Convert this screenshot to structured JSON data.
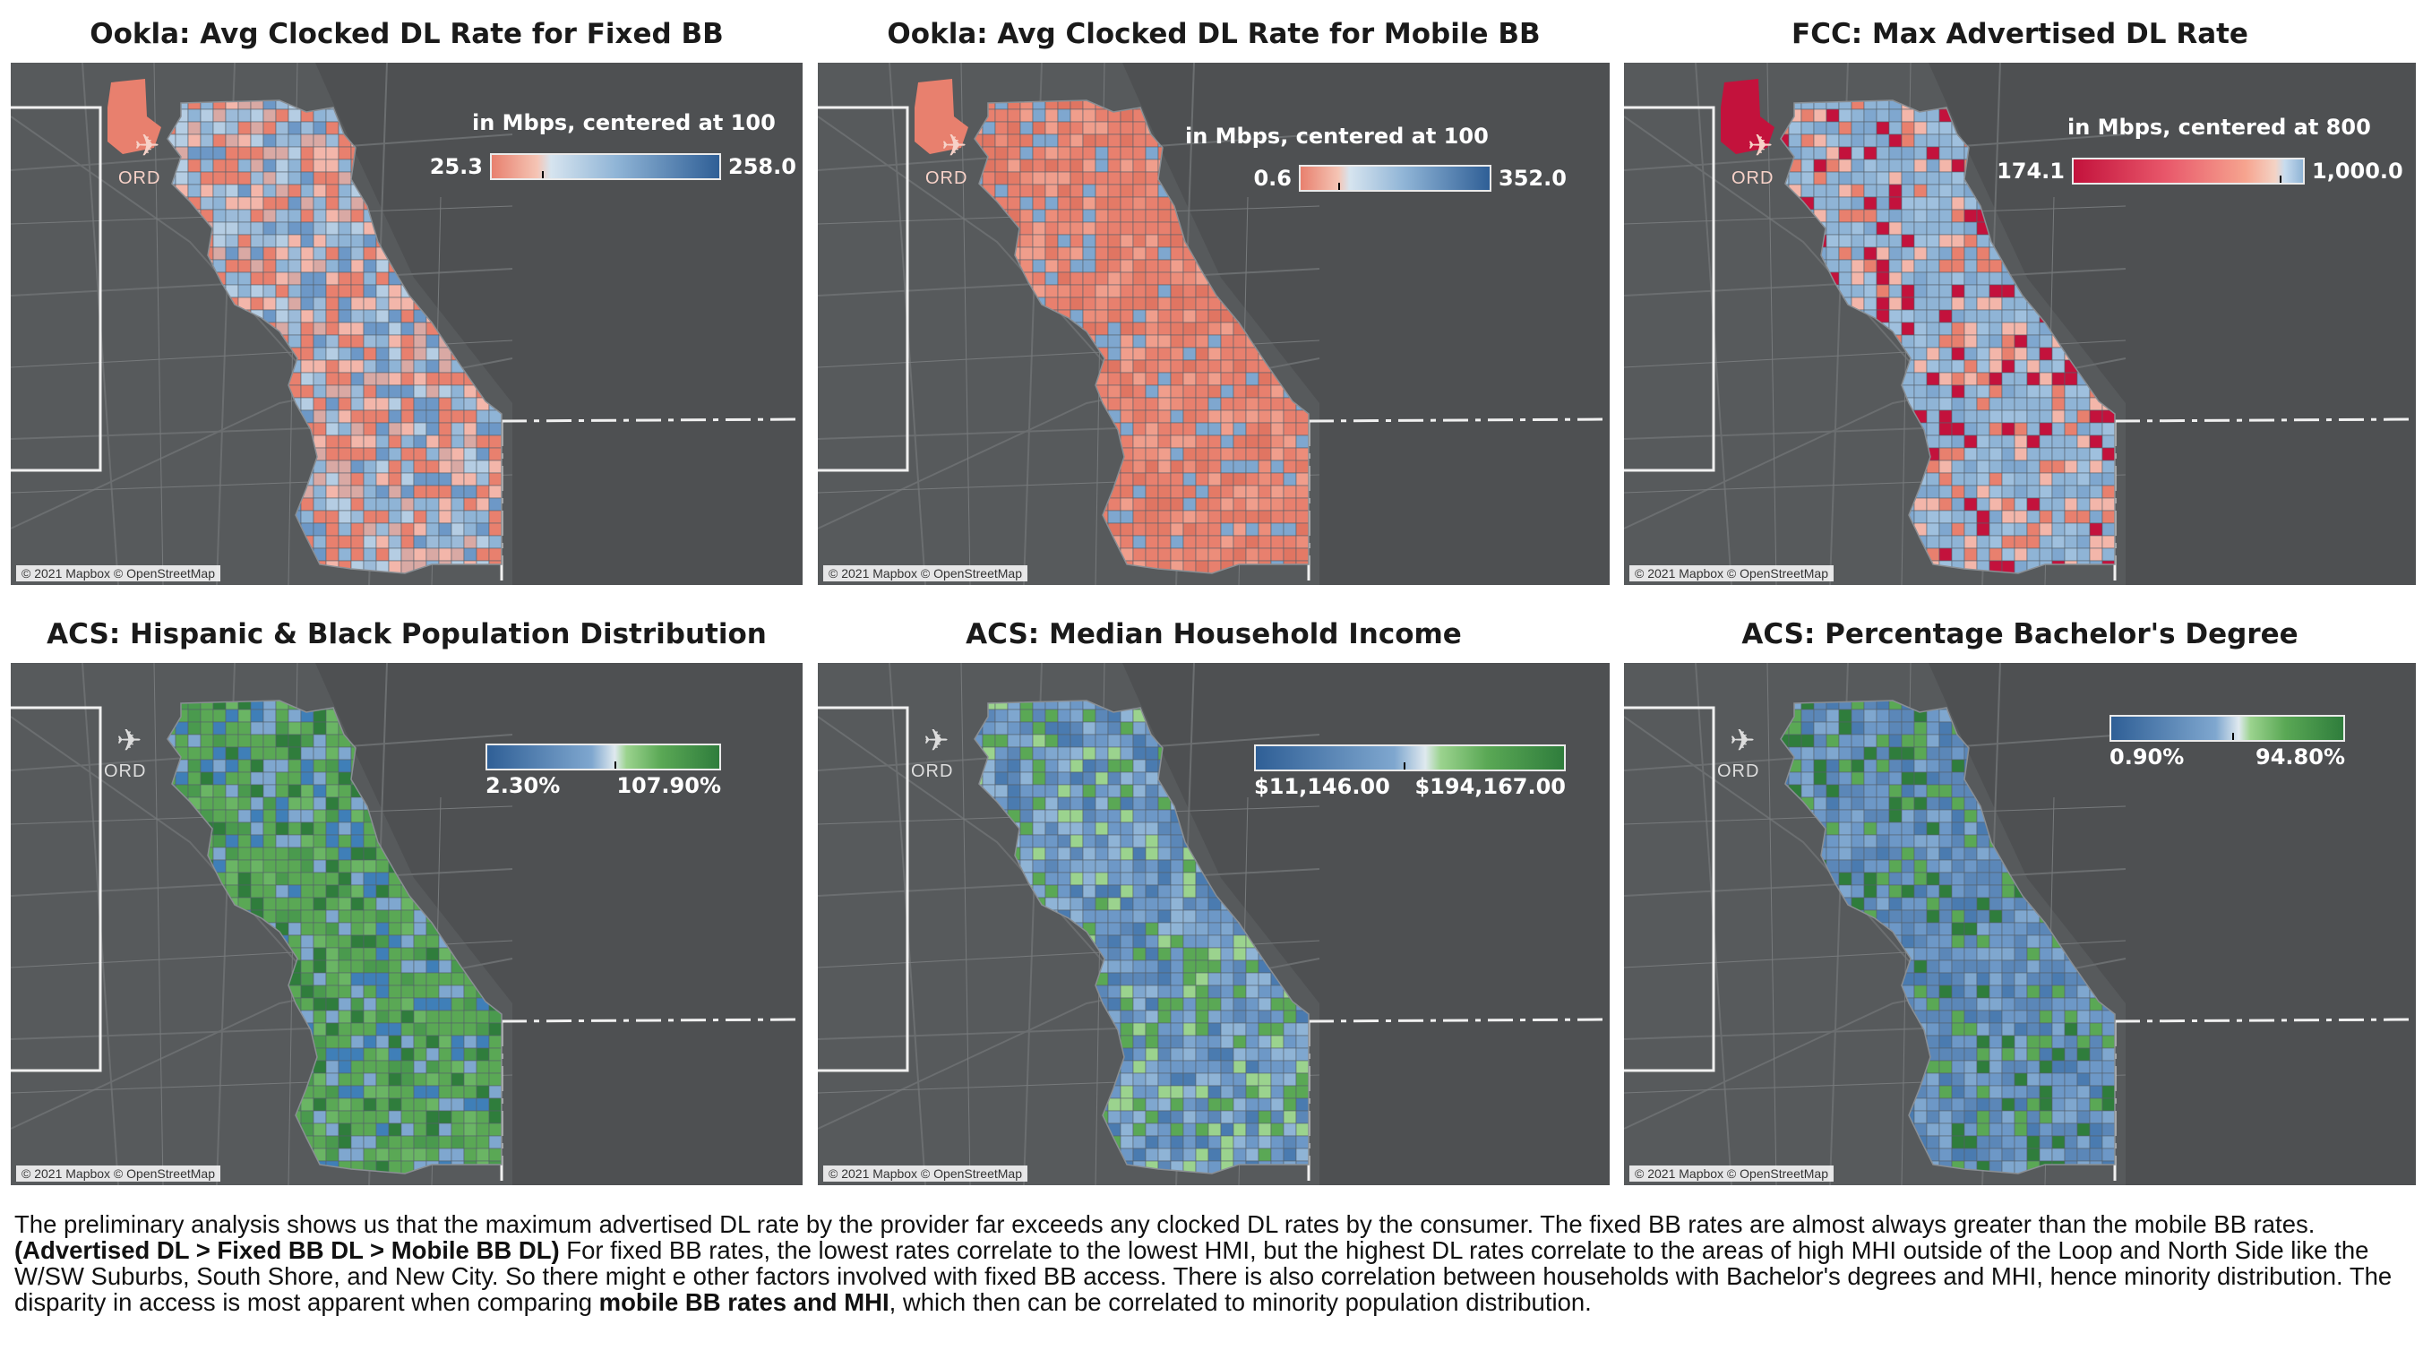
{
  "panels": [
    {
      "title": "Ookla: Avg Clocked DL Rate for Fixed BB",
      "legend_title": "in Mbps, centered at 100",
      "min": "25.3",
      "max": "258.0",
      "scheme": "red-blue",
      "attribution": "© 2021 Mapbox © OpenStreetMap",
      "airport": "ORD"
    },
    {
      "title": "Ookla: Avg Clocked DL Rate for Mobile BB",
      "legend_title": "in Mbps, centered at 100",
      "min": "0.6",
      "max": "352.0",
      "scheme": "red-blue",
      "attribution": "© 2021 Mapbox © OpenStreetMap",
      "airport": "ORD"
    },
    {
      "title": "FCC: Max Advertised DL Rate",
      "legend_title": "in Mbps, centered at 800",
      "min": "174.1",
      "max": "1,000.0",
      "scheme": "crimson-blue",
      "attribution": "© 2021 Mapbox © OpenStreetMap",
      "airport": "ORD"
    },
    {
      "title": "ACS: Hispanic & Black Population Distribution",
      "legend_title": "",
      "min": "2.30%",
      "max": "107.90%",
      "scheme": "blue-green",
      "attribution": "© 2021 Mapbox © OpenStreetMap",
      "airport": "ORD"
    },
    {
      "title": "ACS: Median Household Income",
      "legend_title": "",
      "min": "$11,146.00",
      "max": "$194,167.00",
      "scheme": "blue-green",
      "attribution": "© 2021 Mapbox © OpenStreetMap",
      "airport": "ORD"
    },
    {
      "title": "ACS:  Percentage Bachelor's Degree",
      "legend_title": "",
      "min": "0.90%",
      "max": "94.80%",
      "scheme": "blue-green",
      "attribution": "© 2021 Mapbox © OpenStreetMap",
      "airport": "ORD"
    }
  ],
  "caption": {
    "p1": "The preliminary analysis shows us that the maximum advertised DL rate by the provider far exceeds any clocked DL rates by the consumer.  The fixed BB rates are almost always greater than the mobile BB rates.  ",
    "b1": "(Advertised DL > Fixed BB DL > Mobile BB DL)",
    "p2": " For fixed BB rates, the lowest rates correlate to the lowest HMI, but the highest DL rates correlate to the areas of high MHI outside of the Loop and North Side like the W/SW Suburbs, South Shore, and New City.  So there might e other factors involved with fixed BB access.  There is also correlation between households with Bachelor's degrees and MHI, hence minority distribution.  The disparity in access is most apparent when comparing  ",
    "b2": "mobile BB rates and MHI",
    "p3": ", which then can be correlated to minority population distribution."
  },
  "colors": {
    "map_bg": "#4e5052",
    "red": "#e8806e",
    "light_red": "#f3b6aa",
    "blue": "#8fb4d6",
    "dark_blue": "#3f6fa3",
    "crimson": "#c3123c",
    "green": "#5aa855",
    "dark_green": "#2f7d3c"
  }
}
